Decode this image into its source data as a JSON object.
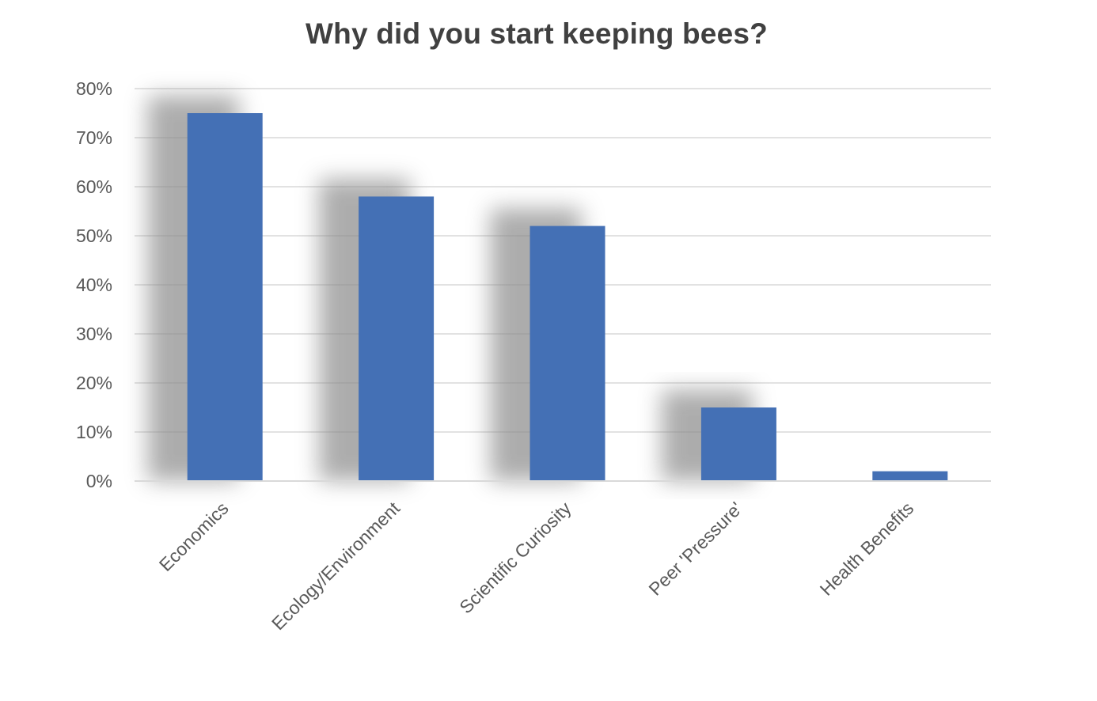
{
  "chart_data": {
    "type": "bar",
    "title": "Why did you start keeping bees?",
    "xlabel": "",
    "ylabel": "",
    "categories": [
      "Economics",
      "Ecology/Environment",
      "Scientific Curiosity",
      "Peer 'Pressure'",
      "Health Benefits"
    ],
    "values": [
      0.75,
      0.58,
      0.52,
      0.15,
      0.02
    ],
    "ylim": [
      0,
      0.8
    ],
    "yticks": [
      0,
      0.1,
      0.2,
      0.3,
      0.4,
      0.5,
      0.6,
      0.7,
      0.8
    ],
    "ytick_labels": [
      "0%",
      "10%",
      "20%",
      "30%",
      "40%",
      "50%",
      "60%",
      "70%",
      "80%"
    ],
    "grid": true,
    "legend": "none",
    "bar_color": "#4470B5",
    "grid_color": "#D9D9D9"
  }
}
